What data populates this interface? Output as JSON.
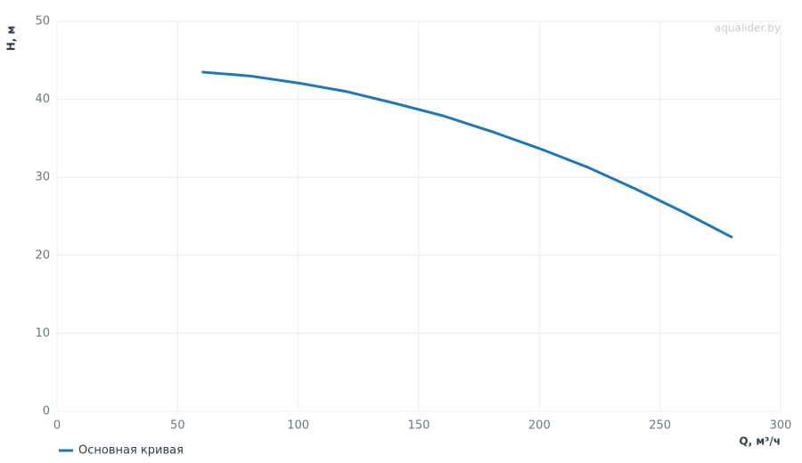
{
  "chart_data": {
    "type": "line",
    "watermark": "aqualider.by",
    "x_label": "Q, м³/ч",
    "y_label": "H, м",
    "x": [
      60,
      80,
      100,
      120,
      140,
      160,
      180,
      200,
      220,
      240,
      260,
      280
    ],
    "series": [
      {
        "name": "Основная кривая",
        "color": "#1f77b4",
        "values": [
          43.5,
          43.0,
          42.1,
          41.0,
          39.5,
          37.9,
          35.9,
          33.7,
          31.3,
          28.5,
          25.5,
          22.3
        ]
      }
    ],
    "xlim": [
      0,
      300
    ],
    "xticks": [
      0,
      50,
      100,
      150,
      200,
      250,
      300
    ],
    "ylim": [
      0,
      50
    ],
    "yticks": [
      0,
      10,
      20,
      30,
      40,
      50
    ],
    "grid": true,
    "legend": "bottom-left"
  }
}
